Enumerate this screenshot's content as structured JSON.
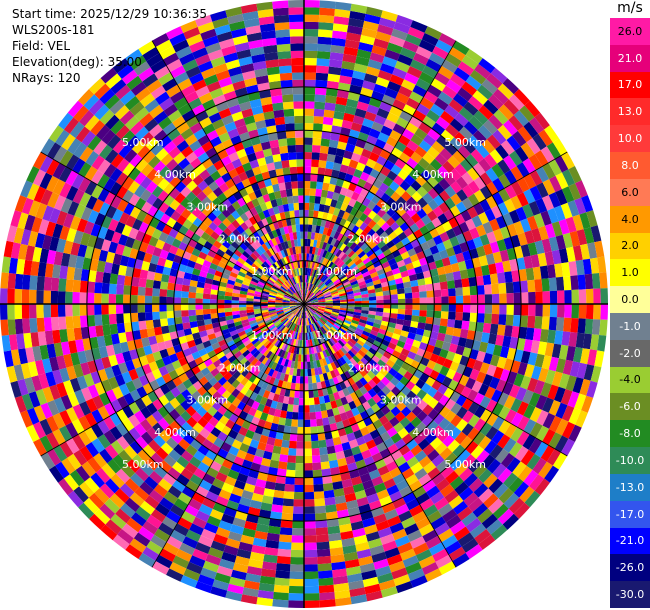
{
  "header": {
    "start_time": "Start time: 2025/12/29 10:36:35",
    "instrument": "WLS200s-181",
    "field": "Field: VEL",
    "elevation": "Elevation(deg): 35.00",
    "nrays": "NRays: 120"
  },
  "chart_data": {
    "type": "heatmap",
    "projection": "polar (PPI scan)",
    "field": "VEL",
    "units": "m/s",
    "elevation_deg": 35.0,
    "n_rays": 120,
    "range_rings_km": [
      1.0,
      2.0,
      3.0,
      4.0,
      5.0
    ],
    "range_ring_labels": [
      "1.00km",
      "2.00km",
      "3.00km",
      "4.00km",
      "5.00km"
    ],
    "max_range_km": 7.0,
    "colorbar": {
      "label": "m/s",
      "ticks": [
        "26.0",
        "21.0",
        "17.0",
        "13.0",
        "10.0",
        "8.0",
        "6.0",
        "4.0",
        "2.0",
        "1.0",
        "0.0",
        "-1.0",
        "-2.0",
        "-4.0",
        "-6.0",
        "-8.0",
        "-10.0",
        "-13.0",
        "-17.0",
        "-21.0",
        "-26.0",
        "-30.0"
      ],
      "colors": [
        "#ff1aa5",
        "#e6007a",
        "#ff0000",
        "#ff2a2a",
        "#ff3a3a",
        "#ff5a30",
        "#ff7a55",
        "#ff9900",
        "#ffd000",
        "#ffff00",
        "#ffff99",
        "#708090",
        "#686868",
        "#9acd32",
        "#6b8e23",
        "#228b22",
        "#2e8b57",
        "#1e7ec8",
        "#3355ee",
        "#0000ff",
        "#000080",
        "#191970"
      ],
      "text_colors": [
        "#000",
        "#fff",
        "#fff",
        "#fff",
        "#fff",
        "#fff",
        "#000",
        "#000",
        "#000",
        "#000",
        "#000",
        "#fff",
        "#fff",
        "#000",
        "#fff",
        "#fff",
        "#fff",
        "#fff",
        "#fff",
        "#fff",
        "#fff",
        "#fff"
      ]
    },
    "palette": [
      "#ff1493",
      "#ff69b4",
      "#dc143c",
      "#ff0000",
      "#ff4500",
      "#ff8c00",
      "#ffd700",
      "#ffff00",
      "#9acd32",
      "#6b8e23",
      "#228b22",
      "#2e8b57",
      "#4682b4",
      "#1e90ff",
      "#0000ff",
      "#0000cd",
      "#000080",
      "#191970",
      "#4b0082",
      "#8a2be2",
      "#ff00ff",
      "#c71585",
      "#ffa500",
      "#708090"
    ],
    "grid": true
  }
}
